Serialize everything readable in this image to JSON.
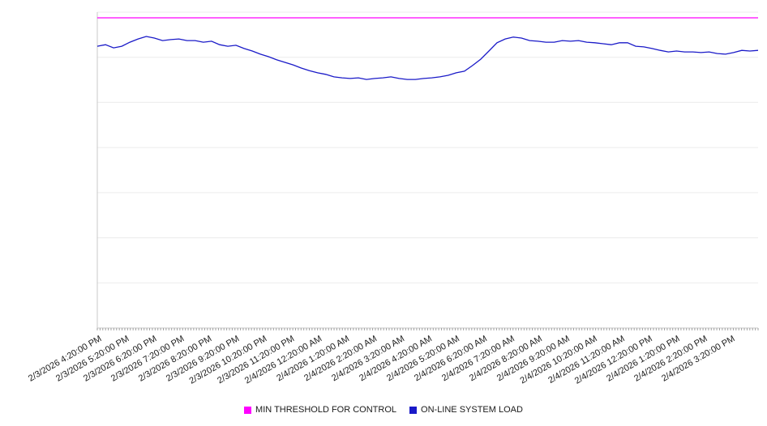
{
  "chart_data": {
    "type": "line",
    "x_labels": [
      "2/3/2026 4:20:00 PM",
      "2/3/2026 5:20:00 PM",
      "2/3/2026 6:20:00 PM",
      "2/3/2026 7:20:00 PM",
      "2/3/2026 8:20:00 PM",
      "2/3/2026 9:20:00 PM",
      "2/3/2026 10:20:00 PM",
      "2/3/2026 11:20:00 PM",
      "2/4/2026 12:20:00 AM",
      "2/4/2026 1:20:00 AM",
      "2/4/2026 2:20:00 AM",
      "2/4/2026 3:20:00 AM",
      "2/4/2026 4:20:00 AM",
      "2/4/2026 5:20:00 AM",
      "2/4/2026 6:20:00 AM",
      "2/4/2026 7:20:00 AM",
      "2/4/2026 8:20:00 AM",
      "2/4/2026 9:20:00 AM",
      "2/4/2026 10:20:00 AM",
      "2/4/2026 11:20:00 AM",
      "2/4/2026 12:20:00 PM",
      "2/4/2026 1:20:00 PM",
      "2/4/2026 2:20:00 PM",
      "2/4/2026 3:20:00 PM"
    ],
    "ylim": [
      0,
      100
    ],
    "y_axis_labels_visible": false,
    "grid": "horizontal",
    "gridline_count": 8,
    "legend_position": "bottom-center",
    "series": [
      {
        "name": "MIN THRESHOLD FOR CONTROL",
        "color": "#ff00ff",
        "style": "constant-horizontal-line",
        "values": [
          98.2,
          98.2
        ]
      },
      {
        "name": "ON-LINE SYSTEM LOAD",
        "color": "#1a1ac8",
        "style": "noisy-line",
        "values": [
          89.2,
          89.7,
          88.7,
          89.2,
          90.5,
          91.5,
          92.3,
          91.8,
          91.0,
          91.3,
          91.5,
          91.0,
          91.0,
          90.5,
          90.8,
          89.7,
          89.2,
          89.5,
          88.5,
          87.7,
          86.7,
          85.9,
          84.9,
          84.1,
          83.3,
          82.3,
          81.5,
          80.8,
          80.3,
          79.5,
          79.2,
          79.0,
          79.2,
          78.7,
          79.0,
          79.2,
          79.5,
          79.0,
          78.7,
          78.7,
          79.0,
          79.2,
          79.5,
          80.0,
          80.8,
          81.3,
          83.1,
          85.1,
          87.7,
          90.3,
          91.5,
          92.1,
          91.8,
          91.0,
          90.8,
          90.5,
          90.5,
          91.0,
          90.8,
          91.0,
          90.5,
          90.3,
          90.0,
          89.7,
          90.3,
          90.3,
          89.2,
          89.0,
          88.5,
          87.9,
          87.4,
          87.7,
          87.4,
          87.4,
          87.2,
          87.4,
          86.9,
          86.7,
          87.2,
          87.9,
          87.7,
          87.9
        ]
      }
    ],
    "axis_colors": {
      "gridline": "#ececec",
      "axis_line": "#c8c8c8",
      "minor_tick": "#a0a0a0",
      "label_text": "#1a1a1a"
    }
  }
}
